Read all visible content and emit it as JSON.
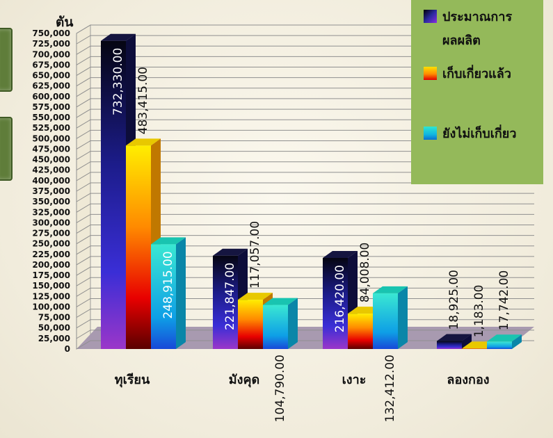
{
  "chart_data": {
    "type": "bar",
    "ylabel": "ตัน",
    "ylim": [
      0,
      750000
    ],
    "y_ticks": [
      "0",
      "25,000",
      "50,000",
      "75,000",
      "100,000",
      "125,000",
      "150,000",
      "175,000",
      "200,000",
      "225,000",
      "250,000",
      "275,000",
      "300,000",
      "325,000",
      "350,000",
      "375,000",
      "400,000",
      "425,000",
      "450,000",
      "475,000",
      "500,000",
      "525,000",
      "550,000",
      "575,000",
      "600,000",
      "625,000",
      "650,000",
      "675,000",
      "700,000",
      "725,000",
      "750,000"
    ],
    "categories": [
      "ทุเรียน",
      "มังคุด",
      "เงาะ",
      "ลองกอง"
    ],
    "series": [
      {
        "name": "ประมาณการผลผลิต",
        "values": [
          732330,
          221847,
          216420,
          18925
        ],
        "labels": [
          "732,330.00",
          "221,847.00",
          "216,420.00",
          "18,925.00"
        ]
      },
      {
        "name": "เก็บเกี่ยวแล้ว",
        "values": [
          483415,
          117057,
          84008,
          1183
        ],
        "labels": [
          "483,415.00",
          "117,057.00",
          "84,008.00",
          "1,183.00"
        ]
      },
      {
        "name": "ยังไม่เก็บเกี่ยว",
        "values": [
          248915,
          104790,
          132412,
          17742
        ],
        "labels": [
          "248,915.00",
          "104,790.00",
          "132,412.00",
          "17,742.00"
        ]
      }
    ],
    "legend_position": "top-right",
    "grid": true
  },
  "legend": {
    "items": [
      {
        "label": "ประมาณการผลผลิต",
        "color": "#2a2a9e"
      },
      {
        "label": "เก็บเกี่ยวแล้ว",
        "color": "#ff8c00"
      },
      {
        "label": "ยังไม่เก็บเกี่ยว",
        "color": "#10b6e0"
      }
    ]
  }
}
